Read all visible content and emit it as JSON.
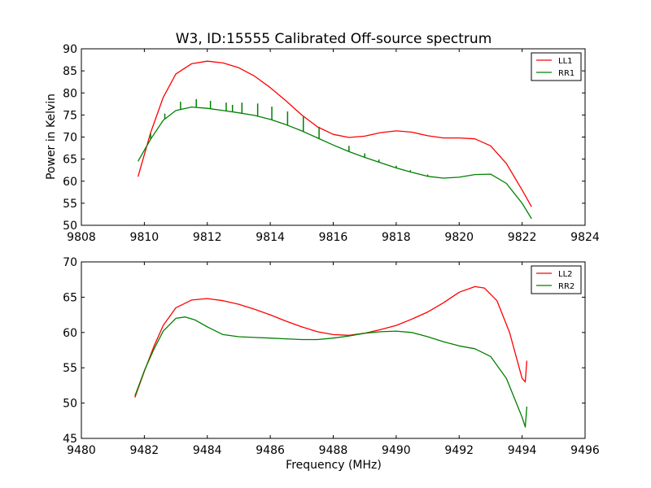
{
  "figure": {
    "title": "W3, ID:15555 Calibrated Off-source spectrum",
    "xlabel": "Frequency (MHz)",
    "ylabel": "Power in Kelvin"
  },
  "chart_data": [
    {
      "type": "line",
      "xlim": [
        9808,
        9824
      ],
      "ylim": [
        50,
        90
      ],
      "xticks": [
        9808,
        9810,
        9812,
        9814,
        9816,
        9818,
        9820,
        9822,
        9824
      ],
      "yticks": [
        50,
        55,
        60,
        65,
        70,
        75,
        80,
        85,
        90
      ],
      "grid": false,
      "legend_position": "top-right",
      "series": [
        {
          "name": "LL1",
          "color": "#ff0000",
          "x": [
            9809.8,
            9810.2,
            9810.6,
            9811.0,
            9811.5,
            9812.0,
            9812.5,
            9813.0,
            9813.5,
            9814.0,
            9814.5,
            9815.0,
            9815.5,
            9816.0,
            9816.5,
            9817.0,
            9817.5,
            9818.0,
            9818.5,
            9819.0,
            9819.5,
            9820.0,
            9820.5,
            9821.0,
            9821.5,
            9822.0,
            9822.3
          ],
          "y": [
            61.0,
            71.0,
            79.0,
            84.3,
            86.6,
            87.2,
            86.8,
            85.7,
            83.8,
            81.2,
            78.2,
            75.0,
            72.3,
            70.6,
            69.9,
            70.2,
            71.0,
            71.4,
            71.1,
            70.3,
            69.8,
            69.8,
            69.6,
            68.0,
            64.0,
            58.0,
            54.2
          ]
        },
        {
          "name": "RR1",
          "color": "#008000",
          "x": [
            9809.8,
            9810.2,
            9810.6,
            9811.0,
            9811.5,
            9812.0,
            9812.5,
            9813.0,
            9813.5,
            9814.0,
            9814.5,
            9815.0,
            9815.5,
            9816.0,
            9816.5,
            9817.0,
            9817.5,
            9818.0,
            9818.5,
            9819.0,
            9819.5,
            9820.0,
            9820.5,
            9821.0,
            9821.5,
            9822.0,
            9822.3
          ],
          "y": [
            64.5,
            69.5,
            73.8,
            76.0,
            76.8,
            76.5,
            76.0,
            75.5,
            74.9,
            74.0,
            72.8,
            71.4,
            69.8,
            68.2,
            66.7,
            65.4,
            64.2,
            63.0,
            62.0,
            61.1,
            60.7,
            60.9,
            61.5,
            61.6,
            59.5,
            55.0,
            51.5
          ],
          "spikes": [
            {
              "x": 9810.2,
              "y": 70.8
            },
            {
              "x": 9810.65,
              "y": 75.3
            },
            {
              "x": 9811.15,
              "y": 78.0
            },
            {
              "x": 9811.65,
              "y": 78.6
            },
            {
              "x": 9812.1,
              "y": 78.2
            },
            {
              "x": 9812.6,
              "y": 77.8
            },
            {
              "x": 9812.8,
              "y": 77.3
            },
            {
              "x": 9813.1,
              "y": 77.8
            },
            {
              "x": 9813.6,
              "y": 77.6
            },
            {
              "x": 9814.05,
              "y": 76.9
            },
            {
              "x": 9814.55,
              "y": 75.8
            },
            {
              "x": 9815.05,
              "y": 74.6
            },
            {
              "x": 9815.55,
              "y": 72.3
            },
            {
              "x": 9816.5,
              "y": 68.0
            },
            {
              "x": 9817.0,
              "y": 66.3
            },
            {
              "x": 9817.45,
              "y": 64.9
            },
            {
              "x": 9818.0,
              "y": 63.5
            },
            {
              "x": 9818.45,
              "y": 62.5
            },
            {
              "x": 9819.0,
              "y": 61.5
            }
          ]
        }
      ]
    },
    {
      "type": "line",
      "xlim": [
        9480,
        9496
      ],
      "ylim": [
        45,
        70
      ],
      "xticks": [
        9480,
        9482,
        9484,
        9486,
        9488,
        9490,
        9492,
        9494,
        9496
      ],
      "yticks": [
        45,
        50,
        55,
        60,
        65,
        70
      ],
      "grid": false,
      "legend_position": "top-right",
      "series": [
        {
          "name": "LL2",
          "color": "#ff0000",
          "x": [
            9481.7,
            9482.0,
            9482.3,
            9482.6,
            9483.0,
            9483.5,
            9484.0,
            9484.5,
            9485.0,
            9485.5,
            9486.0,
            9486.5,
            9487.0,
            9487.5,
            9488.0,
            9488.5,
            9489.0,
            9489.5,
            9490.0,
            9490.5,
            9491.0,
            9491.5,
            9492.0,
            9492.5,
            9492.8,
            9493.2,
            9493.6,
            9494.0,
            9494.1,
            9494.15
          ],
          "y": [
            50.8,
            54.5,
            58.0,
            61.0,
            63.5,
            64.6,
            64.8,
            64.5,
            64.0,
            63.3,
            62.5,
            61.6,
            60.8,
            60.1,
            59.7,
            59.6,
            59.9,
            60.4,
            61.0,
            61.9,
            62.9,
            64.2,
            65.7,
            66.5,
            66.3,
            64.5,
            60.0,
            53.5,
            53.0,
            56.0
          ]
        },
        {
          "name": "RR2",
          "color": "#008000",
          "x": [
            9481.7,
            9482.0,
            9482.3,
            9482.6,
            9483.0,
            9483.3,
            9483.6,
            9484.0,
            9484.5,
            9485.0,
            9485.5,
            9486.0,
            9486.5,
            9487.0,
            9487.5,
            9488.0,
            9488.5,
            9489.0,
            9489.5,
            9490.0,
            9490.5,
            9491.0,
            9491.5,
            9492.0,
            9492.5,
            9493.0,
            9493.5,
            9494.0,
            9494.1,
            9494.15
          ],
          "y": [
            51.0,
            54.6,
            57.6,
            60.2,
            62.0,
            62.2,
            61.8,
            60.8,
            59.7,
            59.4,
            59.3,
            59.2,
            59.1,
            59.0,
            59.0,
            59.2,
            59.5,
            59.9,
            60.1,
            60.2,
            60.0,
            59.4,
            58.7,
            58.1,
            57.7,
            56.6,
            53.5,
            48.0,
            46.6,
            49.5
          ]
        }
      ]
    }
  ]
}
